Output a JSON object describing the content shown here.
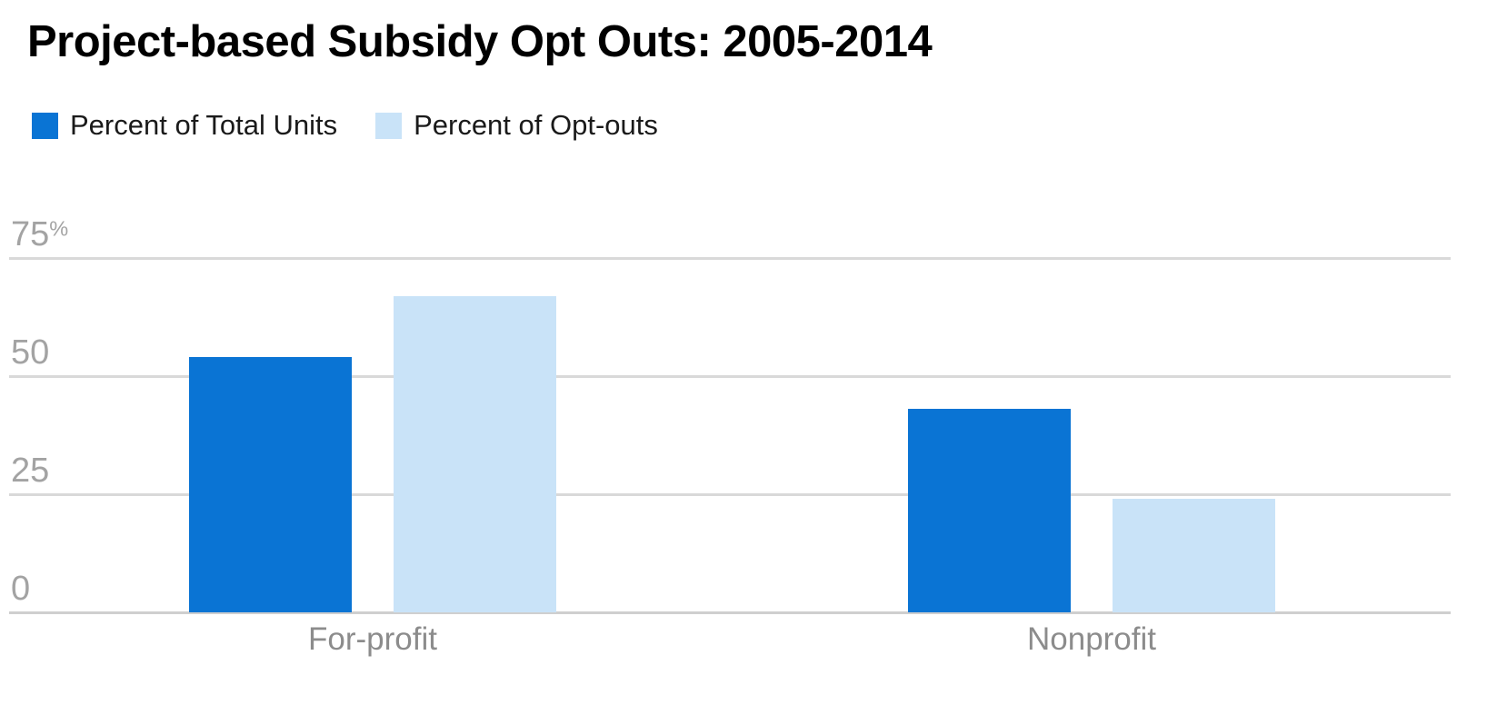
{
  "chart_data": {
    "type": "bar",
    "title": "Project-based Subsidy Opt Outs: 2005-2014",
    "categories": [
      "For-profit",
      "Nonprofit"
    ],
    "series": [
      {
        "name": "Percent of Total Units",
        "color": "#0a74d4",
        "values": [
          54,
          43
        ]
      },
      {
        "name": "Percent of Opt-outs",
        "color": "#c9e3f8",
        "values": [
          67,
          24
        ]
      }
    ],
    "unit": "percent",
    "ylim": [
      0,
      75
    ],
    "yticks": [
      {
        "num": "75",
        "suffix": "%",
        "value": 75
      },
      {
        "num": "50",
        "suffix": "",
        "value": 50
      },
      {
        "num": "25",
        "suffix": "",
        "value": 25
      },
      {
        "num": "0",
        "suffix": "",
        "value": 0
      }
    ],
    "grid": "horizontal",
    "grid_color": "#d9d9d9",
    "legend_position": "top-left",
    "title_color": "#000000",
    "tick_label_color": "#a3a3a3",
    "category_label_color": "#8c8c8c"
  }
}
